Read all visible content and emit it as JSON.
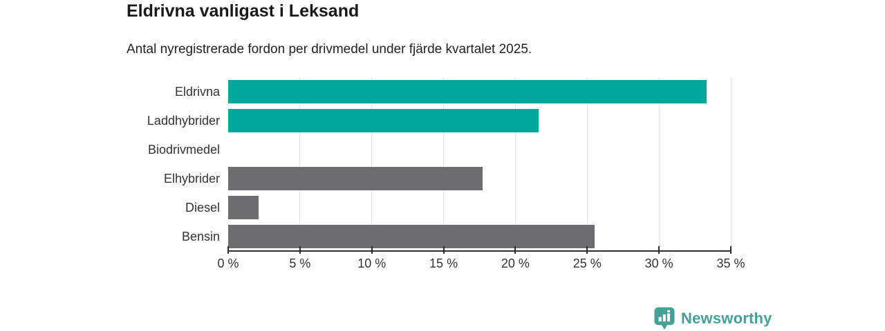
{
  "chart": {
    "title": "Eldrivna vanligast i Leksand",
    "subtitle": "Antal nyregistrerade fordon per drivmedel under fjärde kvartalet 2025."
  },
  "chart_data": {
    "type": "bar",
    "orientation": "horizontal",
    "title": "Eldrivna vanligast i Leksand",
    "subtitle": "Antal nyregistrerade fordon per drivmedel under fjärde kvartalet 2025.",
    "categories": [
      "Eldrivna",
      "Laddhybrider",
      "Biodrivmedel",
      "Elhybrider",
      "Diesel",
      "Bensin"
    ],
    "values": [
      33.3,
      21.6,
      0,
      17.7,
      2.1,
      25.5
    ],
    "unit": "%",
    "xlabel": "",
    "ylabel": "",
    "xlim": [
      0,
      35
    ],
    "x_tick_values": [
      0,
      5,
      10,
      15,
      20,
      25,
      30,
      35
    ],
    "x_tick_labels": [
      "0 %",
      "5 %",
      "10 %",
      "15 %",
      "20 %",
      "25 %",
      "30 %",
      "35 %"
    ],
    "grid": "vertical-only",
    "legend": "none",
    "bar_colors": [
      "#00a69a",
      "#00a69a",
      "#6c6c71",
      "#6c6c71",
      "#6c6c71",
      "#6c6c71"
    ],
    "colors": {
      "teal": "#00a69a",
      "gray": "#6c6c71",
      "gridline": "#e4e4e4",
      "axis": "#2e2e2e",
      "text": "#333333"
    }
  },
  "footer": {
    "brand": "Newsworthy",
    "brand_color": "#45a198"
  }
}
